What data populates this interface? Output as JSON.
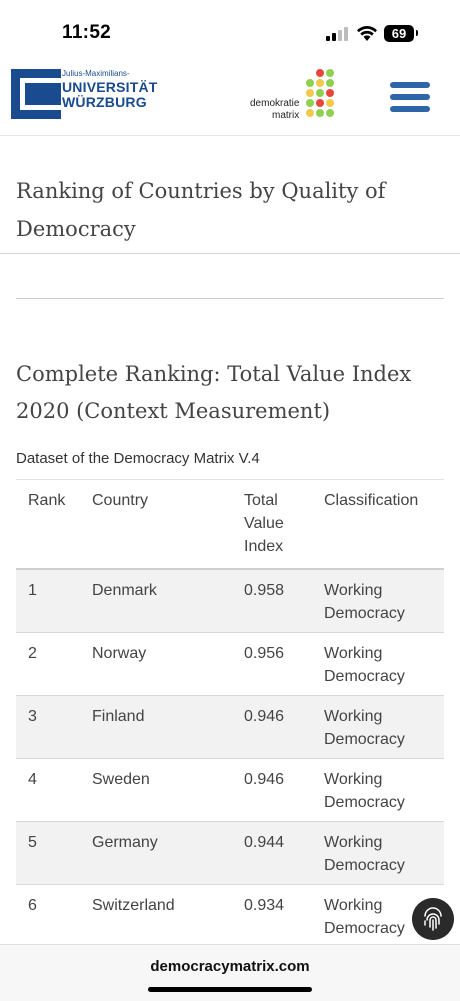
{
  "status_bar": {
    "time": "11:52",
    "battery": "69"
  },
  "header": {
    "university_small": "Julius-Maximilians-",
    "university_line1": "UNIVERSITÄT",
    "university_line2": "WÜRZBURG",
    "project_line1": "demokratie",
    "project_line2": "matrix",
    "brand_color": "#1a4b8f",
    "menu_color": "#2e64a8"
  },
  "page": {
    "title": "Ranking of Countries by Quality of Democracy",
    "section_title": "Complete Ranking: Total Value Index 2020 (Context Measurement)",
    "caption": "Dataset of the Democracy Matrix V.4"
  },
  "table": {
    "headers": {
      "rank": "Rank",
      "country": "Country",
      "index": "Total Value Index",
      "classification": "Classification"
    },
    "rows": [
      {
        "rank": "1",
        "country": "Denmark",
        "index": "0.958",
        "classification": "Working Democracy"
      },
      {
        "rank": "2",
        "country": "Norway",
        "index": "0.956",
        "classification": "Working Democracy"
      },
      {
        "rank": "3",
        "country": "Finland",
        "index": "0.946",
        "classification": "Working Democracy"
      },
      {
        "rank": "4",
        "country": "Sweden",
        "index": "0.946",
        "classification": "Working Democracy"
      },
      {
        "rank": "5",
        "country": "Germany",
        "index": "0.944",
        "classification": "Working Democracy"
      },
      {
        "rank": "6",
        "country": "Switzerland",
        "index": "0.934",
        "classification": "Working Democracy"
      }
    ]
  },
  "browser": {
    "url": "democracymatrix.com"
  },
  "icons": [
    "signal-icon",
    "wifi-icon",
    "battery-icon",
    "university-logo-icon",
    "democracy-matrix-logo-icon",
    "hamburger-menu-icon",
    "fingerprint-icon"
  ]
}
